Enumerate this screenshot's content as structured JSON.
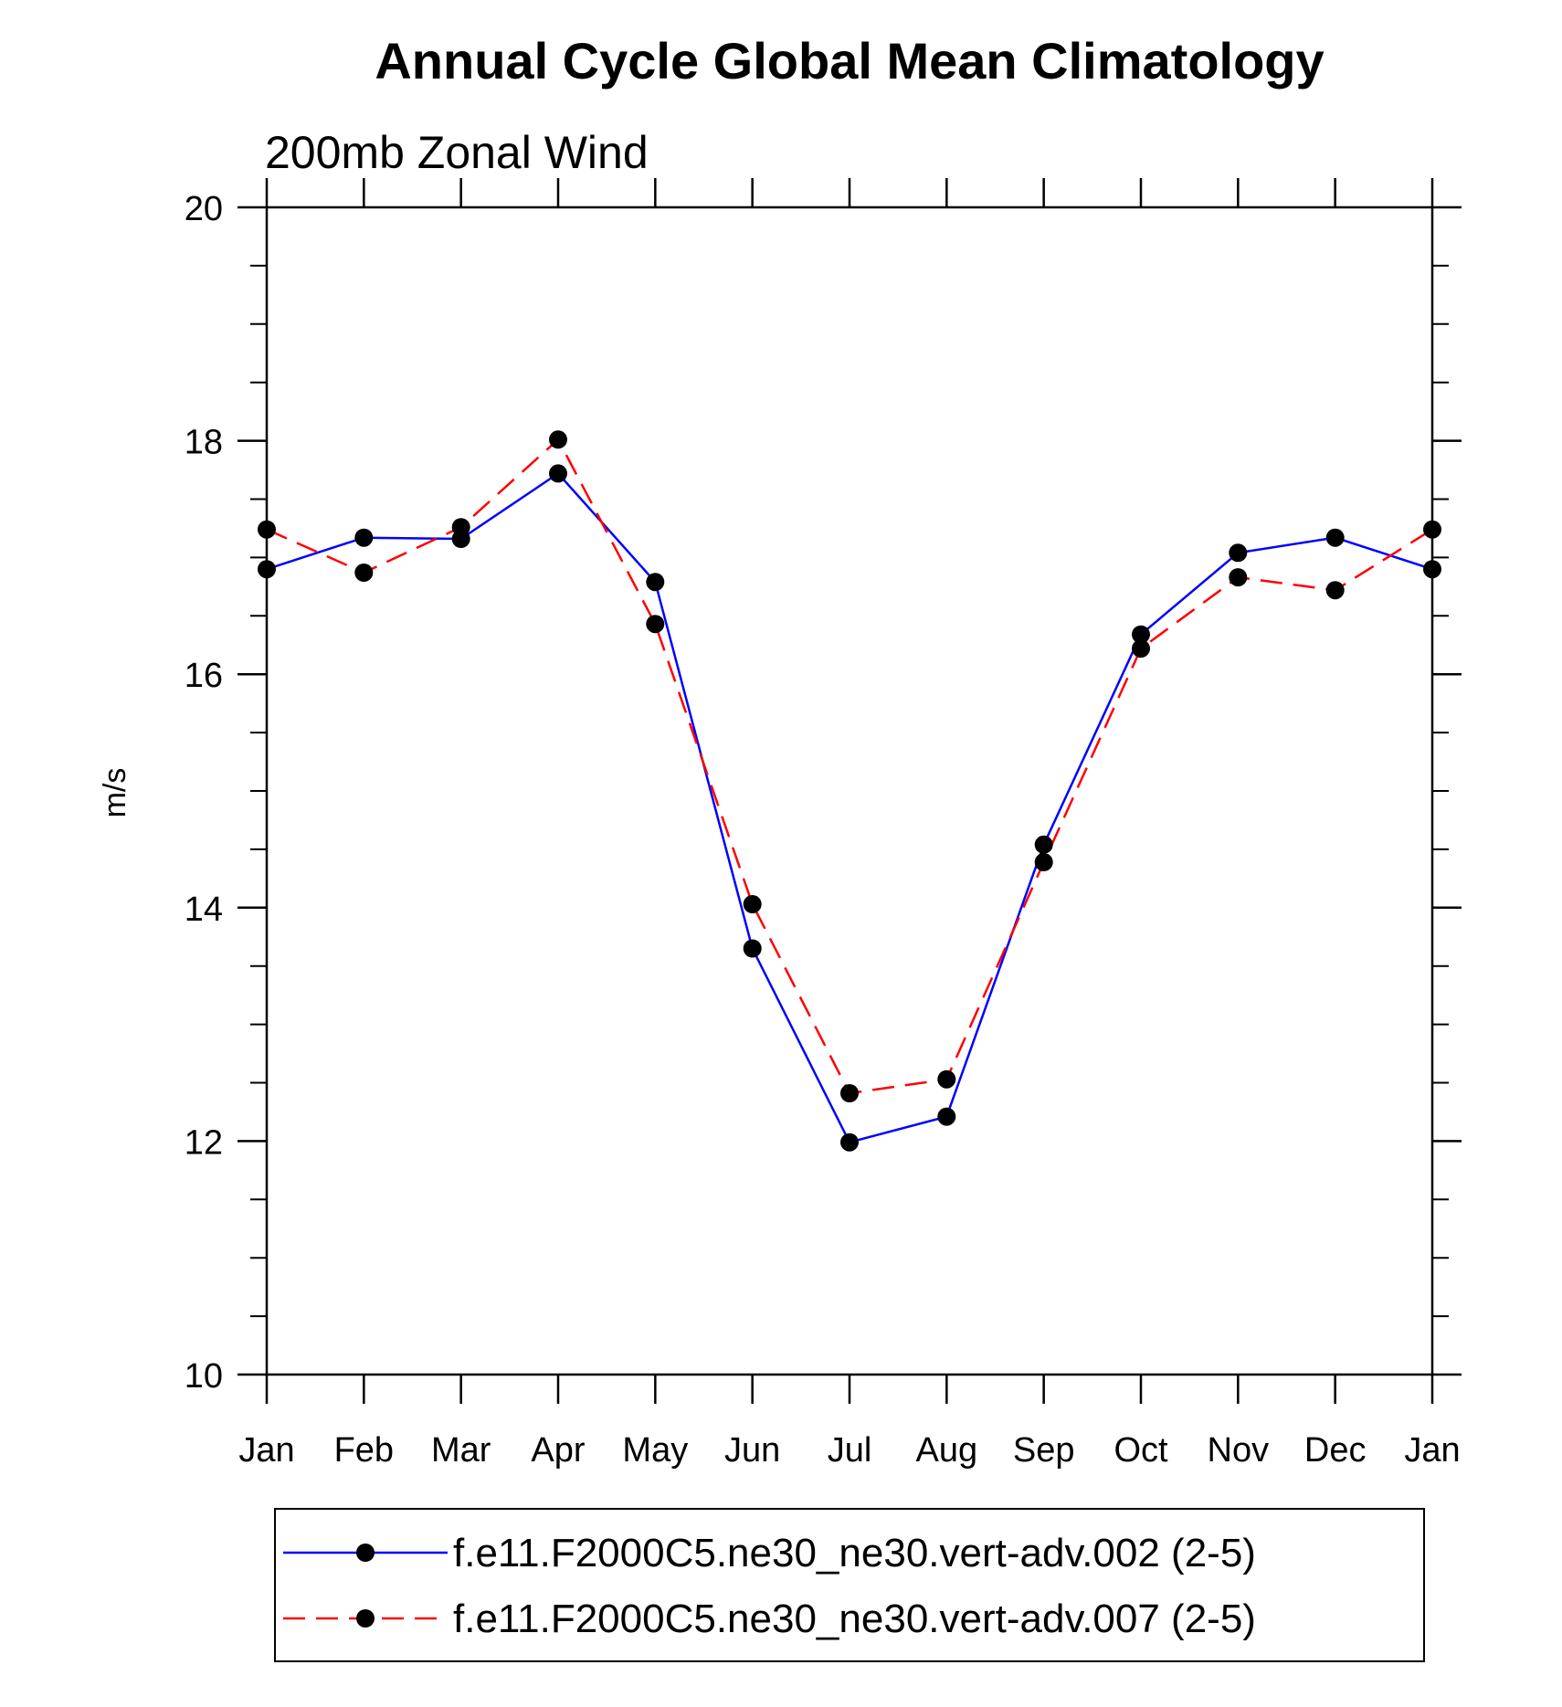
{
  "chart_data": {
    "type": "line",
    "title": "Annual Cycle Global Mean Climatology",
    "subtitle": "200mb Zonal Wind",
    "xlabel": "",
    "ylabel": "m/s",
    "categories": [
      "Jan",
      "Feb",
      "Mar",
      "Apr",
      "May",
      "Jun",
      "Jul",
      "Aug",
      "Sep",
      "Oct",
      "Nov",
      "Dec",
      "Jan"
    ],
    "ylim": [
      10,
      20
    ],
    "yticks": [
      10,
      12,
      14,
      16,
      18,
      20
    ],
    "y_minor_step": 0.5,
    "grid": false,
    "legend_position": "bottom",
    "series": [
      {
        "name": "f.e11.F2000C5.ne30_ne30.vert-adv.002 (2-5)",
        "color": "#0000ff",
        "line_style": "solid",
        "marker": "filled-circle",
        "marker_color": "#000000",
        "values": [
          16.9,
          17.17,
          17.16,
          17.72,
          16.79,
          13.65,
          11.99,
          12.21,
          14.54,
          16.34,
          17.04,
          17.17,
          16.9
        ]
      },
      {
        "name": "f.e11.F2000C5.ne30_ne30.vert-adv.007 (2-5)",
        "color": "#ff0000",
        "line_style": "dashed",
        "marker": "filled-circle",
        "marker_color": "#000000",
        "values": [
          17.24,
          16.87,
          17.26,
          18.01,
          16.43,
          14.03,
          12.41,
          12.53,
          14.39,
          16.22,
          16.83,
          16.72,
          17.24
        ]
      }
    ]
  }
}
